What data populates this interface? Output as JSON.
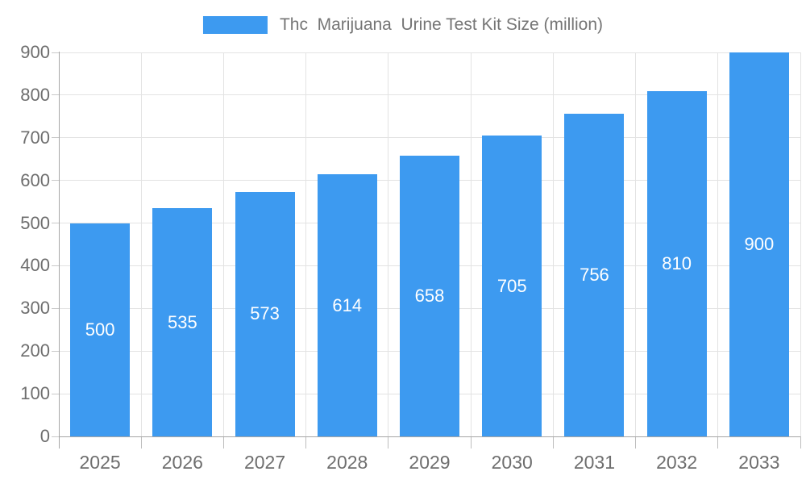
{
  "legend": {
    "position": "top-center"
  },
  "colors": {
    "bar": "#3d9af0",
    "grid": "#e3e3e3",
    "axis": "#a6a6a6",
    "boundary_tick": "#bdbdbd",
    "y_tick": "#c9c9c9",
    "tick_label": "#6e6e6e",
    "value_label": "#ffffff",
    "legend_text": "#757575"
  },
  "chart_data": {
    "type": "bar",
    "title": "Thc  Marijuana  Urine Test Kit Size (million)",
    "categories": [
      "2025",
      "2026",
      "2027",
      "2028",
      "2029",
      "2030",
      "2031",
      "2032",
      "2033"
    ],
    "values": [
      500,
      535,
      573,
      614,
      658,
      705,
      756,
      810,
      900
    ],
    "xlabel": "",
    "ylabel": "",
    "ylim": [
      0,
      900
    ],
    "ytick_step": 100,
    "ytick_labels": [
      "0",
      "100",
      "200",
      "300",
      "400",
      "500",
      "600",
      "700",
      "800",
      "900"
    ],
    "grid": true,
    "gridlines": "horizontal-and-vertical-category-boundaries",
    "legend_position": "top",
    "value_labels": "white-centered-inside-bars",
    "bar_color": "#3d9af0"
  }
}
